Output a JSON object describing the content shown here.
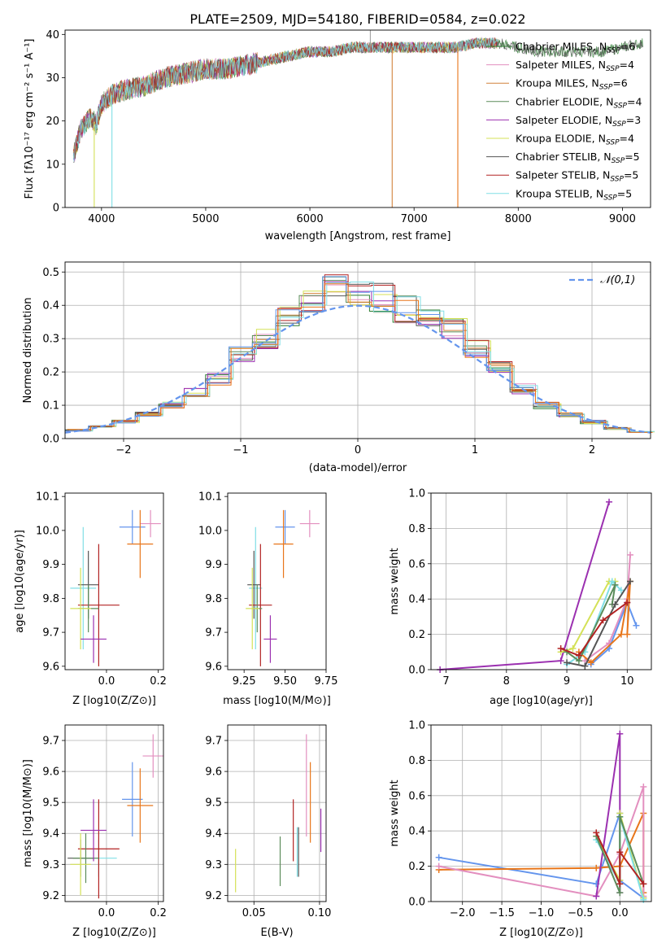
{
  "figure_title": "PLATE=2509, MJD=54180, FIBERID=0584, z=0.022",
  "colors": {
    "blue": "#6495ed",
    "orange": "#e8761a",
    "darkorange2": "#d2823c",
    "darkgreen": "#5b8c5a",
    "purple": "#9b30b0",
    "yellowgreen": "#d4e157",
    "gray": "#555555",
    "darkred": "#b22222",
    "cyan": "#80dfe6",
    "pink": "#e38fbf",
    "green": "#2e7d32"
  },
  "chart_data": [
    {
      "id": "spectrum",
      "type": "line",
      "title": "PLATE=2509, MJD=54180, FIBERID=0584, z=0.022",
      "xlabel": "wavelength [Angstrom, rest frame]",
      "ylabel": "Flux [f_λ10^-17 erg cm^-2 s^-1 A^-1]",
      "xlim": [
        3650,
        9270
      ],
      "ylim": [
        0,
        41
      ],
      "xticks": [
        4000,
        5000,
        6000,
        7000,
        8000,
        9000
      ],
      "yticks": [
        0,
        10,
        20,
        30,
        40
      ],
      "legend": "right",
      "x": [
        3730,
        3800,
        3900,
        3950,
        4000,
        4100,
        4200,
        4400,
        4600,
        4800,
        5000,
        5200,
        5400,
        5600,
        5800,
        6000,
        6200,
        6400,
        6600,
        6800,
        7000,
        7200,
        7400,
        7600,
        7800,
        8000,
        8200,
        8400,
        8600,
        8800,
        9000,
        9200
      ],
      "y": [
        12,
        18,
        21,
        19,
        24,
        26,
        27,
        28,
        30,
        31,
        32,
        32,
        33,
        34,
        35,
        36,
        36,
        37,
        37,
        37,
        37,
        37,
        37,
        38,
        38,
        37,
        36,
        36,
        36,
        36,
        37,
        38
      ],
      "series": [
        {
          "name": "Chabrier MILES, N_SSP=6",
          "label_main": "Chabrier MILES, N",
          "label_sub": "SSP",
          "label_tail": "=6",
          "color": "#2e7d32"
        },
        {
          "name": "Salpeter MILES, N_SSP=4",
          "label_main": "Salpeter MILES, N",
          "label_sub": "SSP",
          "label_tail": "=4",
          "color": "#e38fbf"
        },
        {
          "name": "Kroupa MILES, N_SSP=6",
          "label_main": "Kroupa MILES, N",
          "label_sub": "SSP",
          "label_tail": "=6",
          "color": "#d2823c"
        },
        {
          "name": "Chabrier ELODIE, N_SSP=4",
          "label_main": "Chabrier ELODIE, N",
          "label_sub": "SSP",
          "label_tail": "=4",
          "color": "#5b8c5a"
        },
        {
          "name": "Salpeter ELODIE, N_SSP=3",
          "label_main": "Salpeter ELODIE, N",
          "label_sub": "SSP",
          "label_tail": "=3",
          "color": "#9b30b0"
        },
        {
          "name": "Kroupa ELODIE, N_SSP=4",
          "label_main": "Kroupa ELODIE, N",
          "label_sub": "SSP",
          "label_tail": "=4",
          "color": "#d4e157"
        },
        {
          "name": "Chabrier STELIB, N_SSP=5",
          "label_main": "Chabrier STELIB, N",
          "label_sub": "SSP",
          "label_tail": "=5",
          "color": "#555555"
        },
        {
          "name": "Salpeter STELIB, N_SSP=5",
          "label_main": "Salpeter STELIB, N",
          "label_sub": "SSP",
          "label_tail": "=5",
          "color": "#b22222"
        },
        {
          "name": "Kroupa STELIB, N_SSP=5",
          "label_main": "Kroupa STELIB, N",
          "label_sub": "SSP",
          "label_tail": "=5",
          "color": "#80dfe6"
        }
      ]
    },
    {
      "id": "residuals",
      "type": "line",
      "xlabel": "(data-model)/error",
      "ylabel": "Normed distribution",
      "xlim": [
        -2.5,
        2.5
      ],
      "ylim": [
        0,
        0.53
      ],
      "xticks": [
        -2,
        -1,
        0,
        1,
        2
      ],
      "yticks": [
        0.0,
        0.1,
        0.2,
        0.3,
        0.4,
        0.5
      ],
      "grid": true,
      "legend": "top-right",
      "legend_label": "𝒩(0,1)",
      "hist_bins": [
        -2.5,
        -2.3,
        -2.1,
        -1.9,
        -1.7,
        -1.5,
        -1.3,
        -1.1,
        -0.9,
        -0.7,
        -0.5,
        -0.3,
        -0.1,
        0.1,
        0.3,
        0.5,
        0.7,
        0.9,
        1.1,
        1.3,
        1.5,
        1.7,
        1.9,
        2.1,
        2.3,
        2.5
      ],
      "hist_values": [
        0.025,
        0.035,
        0.05,
        0.075,
        0.1,
        0.14,
        0.18,
        0.25,
        0.3,
        0.36,
        0.4,
        0.45,
        0.44,
        0.42,
        0.39,
        0.37,
        0.33,
        0.27,
        0.21,
        0.15,
        0.1,
        0.07,
        0.05,
        0.03,
        0.02
      ]
    },
    {
      "id": "age_vs_Z",
      "type": "scatter",
      "xlabel": "Z [log10(Z/Z⊙)]",
      "ylabel": "age [log10(age/yr)]",
      "xlim": [
        -0.16,
        0.22
      ],
      "ylim": [
        9.59,
        10.11
      ],
      "xticks": [
        0.0,
        0.2
      ],
      "xtick_labels": [
        "0.0",
        "0.2"
      ],
      "yticks": [
        9.6,
        9.7,
        9.8,
        9.9,
        10.0,
        10.1
      ]
    },
    {
      "id": "age_vs_mass",
      "type": "scatter",
      "xlabel": "mass [log10(M/M⊙)]",
      "ylim": [
        9.59,
        10.11
      ],
      "xlim": [
        9.15,
        9.75
      ],
      "xticks": [
        9.25,
        9.5,
        9.75
      ],
      "yticks": [
        9.6,
        9.7,
        9.8,
        9.9,
        10.0,
        10.1
      ]
    },
    {
      "id": "mass_weight_vs_age",
      "type": "line",
      "xlabel": "age [log10(age/yr)]",
      "ylabel": "mass weight",
      "xlim": [
        6.75,
        10.4
      ],
      "ylim": [
        0,
        1.0
      ],
      "xticks": [
        7,
        8,
        9,
        10
      ],
      "yticks": [
        0.0,
        0.2,
        0.4,
        0.6,
        0.8,
        1.0
      ],
      "grid": true
    },
    {
      "id": "mass_vs_Z",
      "type": "scatter",
      "xlabel": "Z [log10(Z/Z⊙)]",
      "ylabel": "mass [log10(M/M⊙)]",
      "xlim": [
        -0.16,
        0.22
      ],
      "ylim": [
        9.18,
        9.75
      ],
      "xticks": [
        0.0,
        0.2
      ],
      "xtick_labels": [
        "0.0",
        "0.2"
      ],
      "yticks": [
        9.2,
        9.3,
        9.4,
        9.5,
        9.6,
        9.7
      ],
      "grid": true
    },
    {
      "id": "mass_vs_ebv",
      "type": "scatter",
      "xlabel": "E(B-V)",
      "xlim": [
        0.03,
        0.105
      ],
      "ylim": [
        9.18,
        9.75
      ],
      "xticks": [
        0.05,
        0.1
      ],
      "yticks": [
        9.2,
        9.3,
        9.4,
        9.5,
        9.6,
        9.7
      ],
      "grid": true
    },
    {
      "id": "mass_weight_vs_Z",
      "type": "line",
      "xlabel": "Z [log10(Z/Z⊙)]",
      "ylabel": "mass weight",
      "xlim": [
        -2.4,
        0.4
      ],
      "ylim": [
        0,
        1.0
      ],
      "xticks": [
        -2.0,
        -1.5,
        -1.0,
        -0.5,
        0.0
      ],
      "yticks": [
        0.0,
        0.2,
        0.4,
        0.6,
        0.8,
        1.0
      ],
      "grid": true
    }
  ]
}
